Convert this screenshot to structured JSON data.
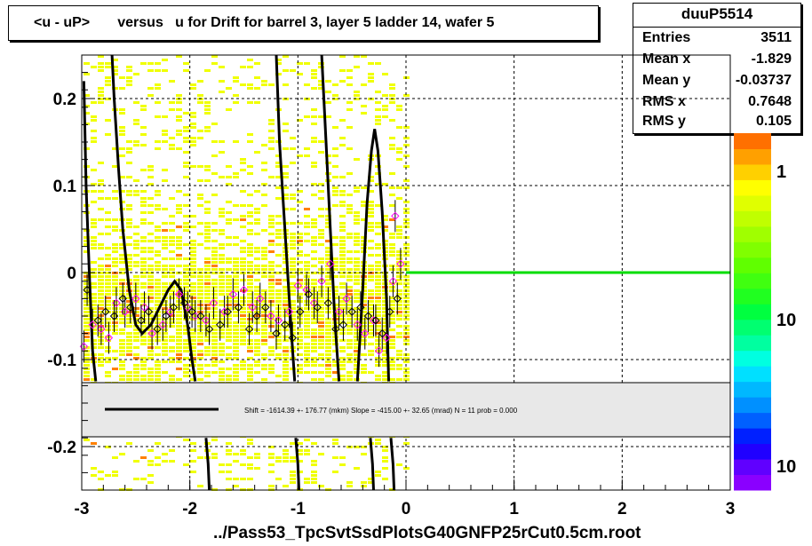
{
  "title": "<u - uP>       versus   u for Drift for barrel 3, layer 5 ladder 14, wafer 5",
  "stats": {
    "name": "duuP5514",
    "rows": [
      {
        "label": "Entries",
        "value": "3511"
      },
      {
        "label": "Mean x",
        "value": "-1.829"
      },
      {
        "label": "Mean y",
        "value": "-0.03737"
      },
      {
        "label": "RMS x",
        "value": "0.7648"
      },
      {
        "label": "RMS y",
        "value": "0.105"
      }
    ]
  },
  "fit_text": "Shift =  -1614.39 +-  176.77 (mkm) Slope =   -415.00 +-  32.65 (mrad)  N = 11 prob = 0.000",
  "footer": "../Pass53_TpcSvtSsdPlotsG40GNFP25rCut0.5cm.root",
  "colors": {
    "fit_line": "#00dd00",
    "curve": "#000000",
    "profile_black": "#000000",
    "profile_magenta": "#ff00ff",
    "heat_low": "#f0ff00",
    "heat_high": "#ff8000"
  },
  "chart_data": {
    "type": "heatmap",
    "xlim": [
      -3,
      3
    ],
    "ylim": [
      -0.25,
      0.25
    ],
    "x_ticks": [
      "-3",
      "-2",
      "-1",
      "0",
      "1",
      "2",
      "3"
    ],
    "y_ticks": [
      "-0.2",
      "-0.1",
      "0",
      "0.1",
      "0.2"
    ],
    "grid": true,
    "colorbar_labels": [
      "1",
      "10",
      "10"
    ],
    "fit_line": {
      "x": [
        0.0,
        3.0
      ],
      "y": [
        0.0,
        0.0
      ]
    },
    "profile_black": {
      "x": [
        -2.95,
        -2.85,
        -2.78,
        -2.7,
        -2.62,
        -2.55,
        -2.45,
        -2.38,
        -2.3,
        -2.22,
        -2.15,
        -2.05,
        -1.98,
        -1.9,
        -1.82,
        -1.72,
        -1.65,
        -1.55,
        -1.45,
        -1.38,
        -1.3,
        -1.2,
        -1.12,
        -1.05,
        -0.98,
        -0.9,
        -0.82,
        -0.72,
        -0.65,
        -0.58,
        -0.5,
        -0.42,
        -0.35,
        -0.28,
        -0.22,
        -0.15,
        -0.08
      ],
      "y": [
        -0.02,
        -0.055,
        -0.045,
        -0.05,
        -0.03,
        -0.04,
        -0.055,
        -0.045,
        -0.065,
        -0.05,
        -0.04,
        -0.035,
        -0.045,
        -0.05,
        -0.065,
        -0.06,
        -0.045,
        -0.04,
        -0.065,
        -0.05,
        -0.04,
        -0.07,
        -0.06,
        -0.075,
        -0.045,
        -0.025,
        -0.04,
        -0.035,
        -0.065,
        -0.06,
        -0.045,
        -0.04,
        -0.05,
        -0.055,
        -0.07,
        -0.045,
        -0.03
      ]
    },
    "profile_magenta": {
      "x": [
        -2.98,
        -2.9,
        -2.82,
        -2.75,
        -2.68,
        -2.6,
        -2.5,
        -2.42,
        -2.35,
        -2.25,
        -2.18,
        -2.1,
        -2.02,
        -1.95,
        -1.85,
        -1.78,
        -1.68,
        -1.6,
        -1.5,
        -1.42,
        -1.35,
        -1.25,
        -1.18,
        -1.08,
        -1.0,
        -0.92,
        -0.85,
        -0.78,
        -0.7,
        -0.62,
        -0.55,
        -0.45,
        -0.38,
        -0.3,
        -0.25,
        -0.18,
        -0.12,
        -0.1,
        -0.05
      ],
      "y": [
        -0.085,
        -0.06,
        -0.065,
        -0.075,
        -0.035,
        -0.045,
        -0.03,
        -0.04,
        -0.07,
        -0.06,
        -0.045,
        -0.025,
        -0.04,
        -0.05,
        -0.055,
        -0.035,
        -0.045,
        -0.025,
        -0.02,
        -0.04,
        -0.03,
        -0.05,
        -0.055,
        -0.045,
        -0.015,
        -0.02,
        -0.035,
        -0.01,
        0.01,
        -0.045,
        -0.03,
        -0.06,
        -0.07,
        -0.055,
        -0.09,
        -0.075,
        -0.01,
        0.065,
        0.01
      ]
    }
  }
}
